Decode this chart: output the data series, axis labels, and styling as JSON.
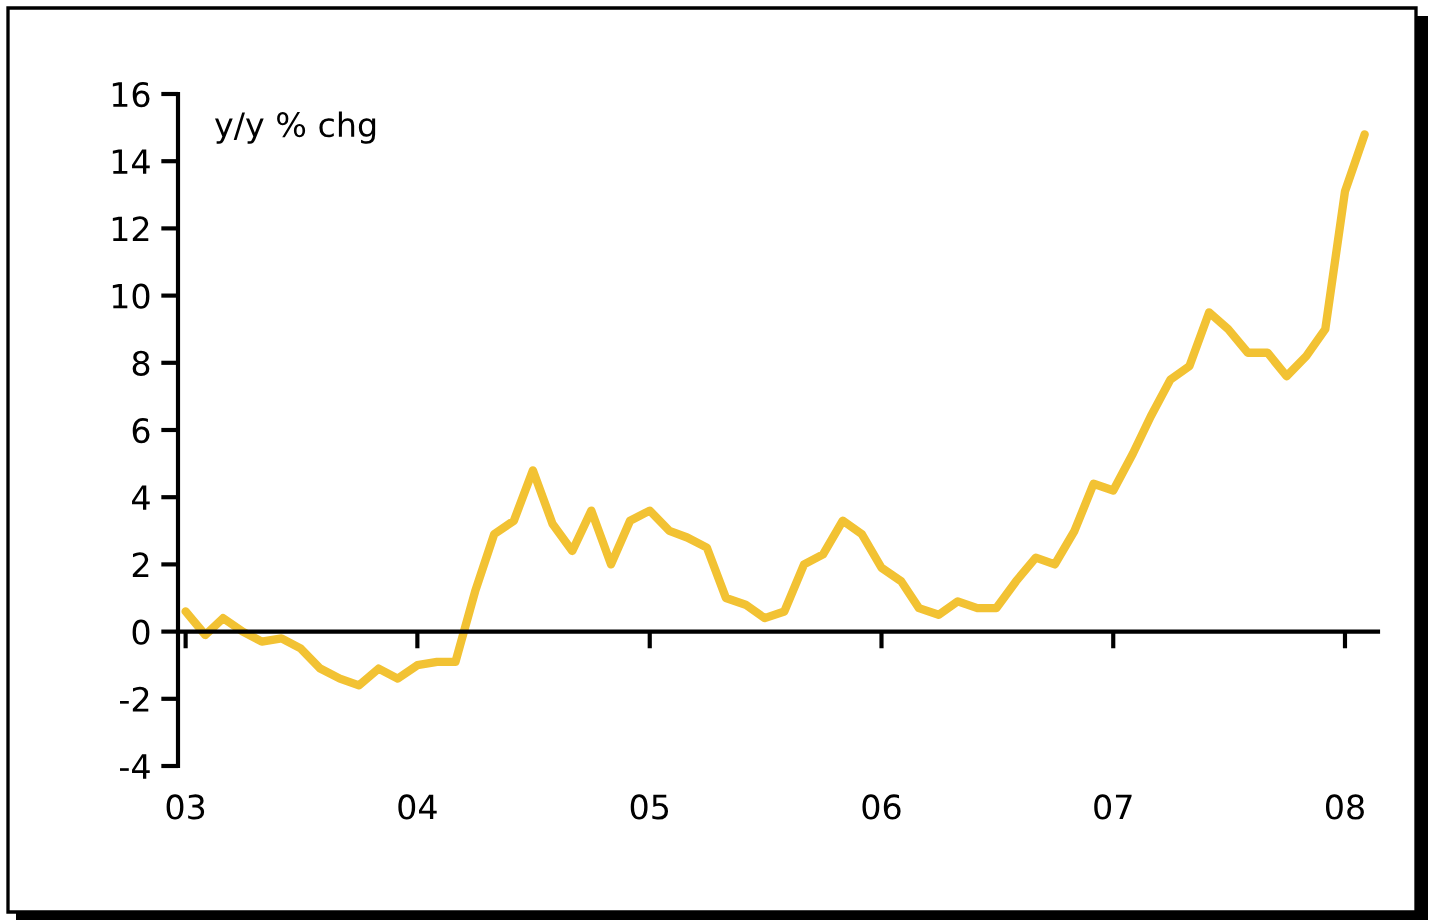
{
  "chart_data": {
    "type": "line",
    "ylabel": "y/y % chg",
    "x": [
      "2003-01",
      "2003-02",
      "2003-03",
      "2003-04",
      "2003-05",
      "2003-06",
      "2003-07",
      "2003-08",
      "2003-09",
      "2003-10",
      "2003-11",
      "2003-12",
      "2004-01",
      "2004-02",
      "2004-03",
      "2004-04",
      "2004-05",
      "2004-06",
      "2004-07",
      "2004-08",
      "2004-09",
      "2004-10",
      "2004-11",
      "2004-12",
      "2005-01",
      "2005-02",
      "2005-03",
      "2005-04",
      "2005-05",
      "2005-06",
      "2005-07",
      "2005-08",
      "2005-09",
      "2005-10",
      "2005-11",
      "2005-12",
      "2006-01",
      "2006-02",
      "2006-03",
      "2006-04",
      "2006-05",
      "2006-06",
      "2006-07",
      "2006-08",
      "2006-09",
      "2006-10",
      "2006-11",
      "2006-12",
      "2007-01",
      "2007-02",
      "2007-03",
      "2007-04",
      "2007-05",
      "2007-06",
      "2007-07",
      "2007-08",
      "2007-09",
      "2007-10",
      "2007-11",
      "2007-12",
      "2008-01",
      "2008-02"
    ],
    "series": [
      {
        "color": "#f2c233",
        "values": [
          0.6,
          -0.1,
          0.4,
          0.0,
          -0.3,
          -0.2,
          -0.5,
          -1.1,
          -1.4,
          -1.6,
          -1.1,
          -1.4,
          -1.0,
          -0.9,
          -0.9,
          1.2,
          2.9,
          3.3,
          4.8,
          3.2,
          2.4,
          3.6,
          2.0,
          3.3,
          3.6,
          3.0,
          2.8,
          2.5,
          1.0,
          0.8,
          0.4,
          0.6,
          2.0,
          2.3,
          3.3,
          2.9,
          1.9,
          1.5,
          0.7,
          0.5,
          0.9,
          0.7,
          0.7,
          1.5,
          2.2,
          2.0,
          3.0,
          4.4,
          4.2,
          5.3,
          6.4,
          7.5,
          7.9,
          9.5,
          9.0,
          8.3,
          8.3,
          7.6,
          8.2,
          9.0,
          13.1,
          14.8
        ]
      }
    ],
    "xlim": [
      "2002-12-20",
      "2008-02-22"
    ],
    "xticks": [
      {
        "value": "2003-01",
        "label": "03"
      },
      {
        "value": "2004-01",
        "label": "04"
      },
      {
        "value": "2005-01",
        "label": "05"
      },
      {
        "value": "2006-01",
        "label": "06"
      },
      {
        "value": "2007-01",
        "label": "07"
      },
      {
        "value": "2008-01",
        "label": "08"
      }
    ],
    "ylim": [
      -4,
      16
    ],
    "yticks": [
      -4,
      -2,
      0,
      2,
      4,
      6,
      8,
      10,
      12,
      14,
      16
    ],
    "marker": "none",
    "line_style": "solid"
  }
}
